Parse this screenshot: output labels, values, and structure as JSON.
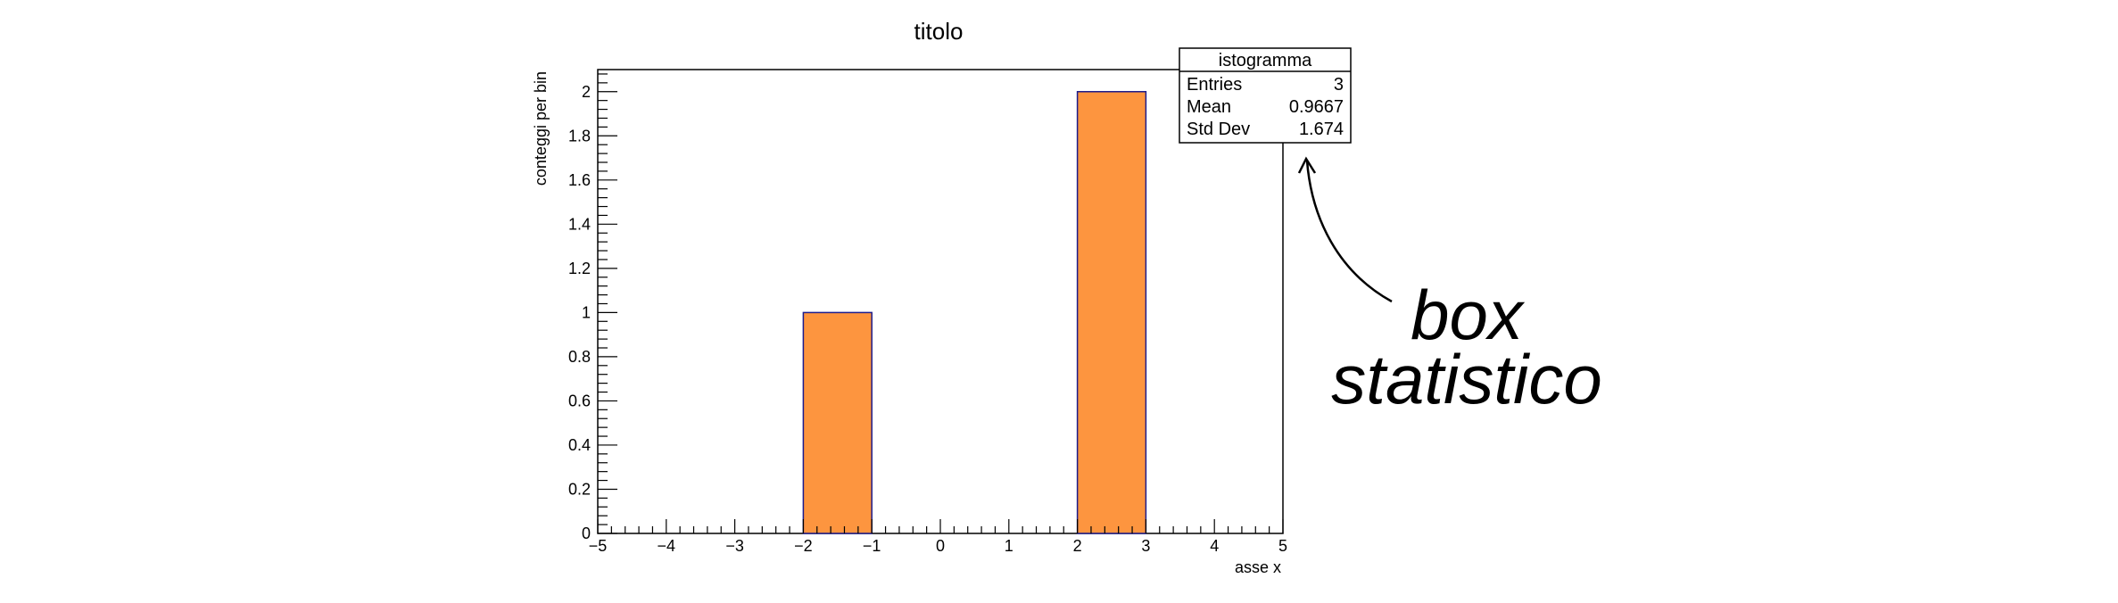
{
  "chart_data": {
    "type": "bar",
    "title": "titolo",
    "xlabel": "asse x",
    "ylabel": "conteggi per bin",
    "xlim": [
      -5,
      5
    ],
    "ylim": [
      0,
      2.1
    ],
    "bin_width": 1,
    "x_tick_labels": [
      "−5",
      "−4",
      "−3",
      "−2",
      "−1",
      "0",
      "1",
      "2",
      "3",
      "4",
      "5"
    ],
    "y_tick_labels": [
      "0",
      "0.2",
      "0.4",
      "0.6",
      "0.8",
      "1",
      "1.2",
      "1.4",
      "1.6",
      "1.8",
      "2"
    ],
    "bins": [
      {
        "x_low": -2,
        "x_high": -1,
        "value": 1
      },
      {
        "x_low": 2,
        "x_high": 3,
        "value": 2
      }
    ],
    "bar_fill": "#fd953f",
    "bar_edge": "#1c1c8c",
    "grid": false,
    "legend": "none"
  },
  "stats_box": {
    "title": "istogramma",
    "rows": [
      {
        "label": "Entries",
        "value": "3"
      },
      {
        "label": "Mean",
        "value": "0.9667"
      },
      {
        "label": "Std Dev",
        "value": "1.674"
      }
    ]
  },
  "annotation": {
    "line1": "box",
    "line2": "statistico"
  }
}
